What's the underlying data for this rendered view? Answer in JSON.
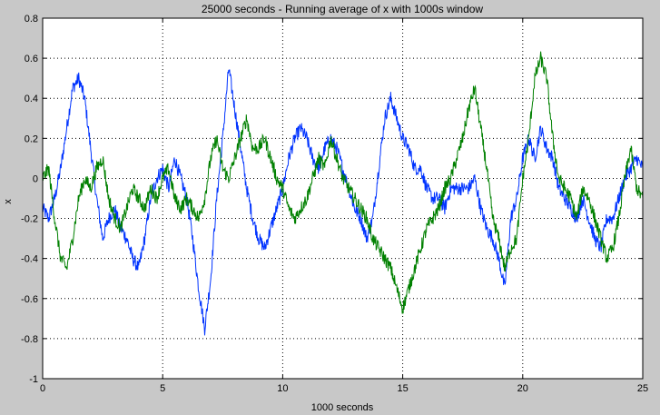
{
  "chart_data": {
    "type": "line",
    "title": "25000 seconds - Running average of x with 1000s window",
    "xlabel": "1000 seconds",
    "ylabel": "x",
    "xlim": [
      0,
      25
    ],
    "ylim": [
      -1,
      0.8
    ],
    "xticks": [
      0,
      5,
      10,
      15,
      20,
      25
    ],
    "yticks": [
      -1,
      -0.8,
      -0.6,
      -0.4,
      -0.2,
      0,
      0.2,
      0.4,
      0.6,
      0.8
    ],
    "grid": true,
    "series": [
      {
        "color": "#0033ff",
        "x": [
          0,
          0.25,
          0.5,
          0.75,
          1,
          1.25,
          1.5,
          1.75,
          2,
          2.25,
          2.5,
          2.75,
          3,
          3.25,
          3.5,
          3.75,
          4,
          4.25,
          4.5,
          4.75,
          5,
          5.25,
          5.5,
          5.75,
          6,
          6.25,
          6.5,
          6.75,
          7,
          7.25,
          7.5,
          7.75,
          8,
          8.25,
          8.5,
          8.75,
          9,
          9.25,
          9.5,
          9.75,
          10,
          10.25,
          10.5,
          10.75,
          11,
          11.25,
          11.5,
          11.75,
          12,
          12.25,
          12.5,
          12.75,
          13,
          13.25,
          13.5,
          13.75,
          14,
          14.25,
          14.5,
          14.75,
          15,
          15.25,
          15.5,
          15.75,
          16,
          16.25,
          16.5,
          16.75,
          17,
          17.25,
          17.5,
          17.75,
          18,
          18.25,
          18.5,
          18.75,
          19,
          19.25,
          19.5,
          19.75,
          20,
          20.25,
          20.5,
          20.75,
          21,
          21.25,
          21.5,
          21.75,
          22,
          22.25,
          22.5,
          22.75,
          23,
          23.25,
          23.5,
          23.75,
          24,
          24.25,
          24.5,
          24.75,
          25
        ],
        "y": [
          -0.15,
          -0.2,
          -0.1,
          0.05,
          0.25,
          0.45,
          0.5,
          0.4,
          0.15,
          -0.1,
          -0.3,
          -0.2,
          -0.15,
          -0.25,
          -0.3,
          -0.4,
          -0.45,
          -0.3,
          -0.1,
          0,
          0.05,
          -0.05,
          0.1,
          0,
          -0.1,
          -0.3,
          -0.55,
          -0.75,
          -0.5,
          -0.1,
          0.2,
          0.55,
          0.35,
          0.15,
          -0.05,
          -0.2,
          -0.3,
          -0.35,
          -0.25,
          -0.15,
          -0.05,
          0.1,
          0.2,
          0.25,
          0.2,
          0.1,
          0.05,
          0.15,
          0.2,
          0.15,
          0.05,
          -0.05,
          -0.15,
          -0.2,
          -0.3,
          -0.2,
          0.05,
          0.3,
          0.4,
          0.3,
          0.2,
          0.15,
          0.05,
          0.05,
          -0.05,
          -0.1,
          -0.1,
          -0.15,
          -0.05,
          -0.05,
          -0.05,
          -0.05,
          0,
          -0.15,
          -0.25,
          -0.3,
          -0.4,
          -0.55,
          -0.2,
          -0.1,
          0.1,
          0.2,
          0.1,
          0.25,
          0.15,
          0.1,
          -0.05,
          -0.1,
          -0.15,
          -0.2,
          -0.1,
          -0.2,
          -0.3,
          -0.35,
          -0.2,
          -0.2,
          -0.1,
          0,
          0.05,
          0.1,
          0.05
        ]
      },
      {
        "color": "#008000",
        "x": [
          0,
          0.25,
          0.5,
          0.75,
          1,
          1.25,
          1.5,
          1.75,
          2,
          2.25,
          2.5,
          2.75,
          3,
          3.25,
          3.5,
          3.75,
          4,
          4.25,
          4.5,
          4.75,
          5,
          5.25,
          5.5,
          5.75,
          6,
          6.25,
          6.5,
          6.75,
          7,
          7.25,
          7.5,
          7.75,
          8,
          8.25,
          8.5,
          8.75,
          9,
          9.25,
          9.5,
          9.75,
          10,
          10.25,
          10.5,
          10.75,
          11,
          11.25,
          11.5,
          11.75,
          12,
          12.25,
          12.5,
          12.75,
          13,
          13.25,
          13.5,
          13.75,
          14,
          14.25,
          14.5,
          14.75,
          15,
          15.25,
          15.5,
          15.75,
          16,
          16.25,
          16.5,
          16.75,
          17,
          17.25,
          17.5,
          17.75,
          18,
          18.25,
          18.5,
          18.75,
          19,
          19.25,
          19.5,
          19.75,
          20,
          20.25,
          20.5,
          20.75,
          21,
          21.25,
          21.5,
          21.75,
          22,
          22.25,
          22.5,
          22.75,
          23,
          23.25,
          23.5,
          23.75,
          24,
          24.25,
          24.5,
          24.75,
          25
        ],
        "y": [
          0,
          0.05,
          -0.2,
          -0.4,
          -0.45,
          -0.3,
          -0.1,
          0,
          -0.05,
          0.05,
          0.1,
          -0.1,
          -0.2,
          -0.25,
          -0.15,
          -0.05,
          -0.1,
          -0.15,
          -0.05,
          -0.1,
          0,
          0.05,
          -0.1,
          -0.15,
          -0.1,
          -0.15,
          -0.2,
          -0.1,
          0.1,
          0.2,
          0.05,
          0,
          0.1,
          0.2,
          0.3,
          0.15,
          0.15,
          0.2,
          0.1,
          0,
          -0.05,
          -0.15,
          -0.2,
          -0.15,
          -0.1,
          0,
          0.1,
          0.05,
          0.2,
          0.1,
          0,
          -0.05,
          -0.1,
          -0.15,
          -0.2,
          -0.3,
          -0.35,
          -0.4,
          -0.45,
          -0.55,
          -0.65,
          -0.55,
          -0.45,
          -0.35,
          -0.25,
          -0.2,
          -0.15,
          -0.05,
          0,
          0.1,
          0.2,
          0.35,
          0.45,
          0.25,
          0.05,
          -0.2,
          -0.3,
          -0.45,
          -0.35,
          -0.3,
          0,
          0.2,
          0.5,
          0.6,
          0.5,
          0.2,
          0,
          -0.05,
          -0.1,
          -0.2,
          -0.05,
          -0.1,
          -0.2,
          -0.3,
          -0.4,
          -0.35,
          -0.2,
          0,
          0.15,
          -0.05,
          -0.1
        ]
      }
    ]
  }
}
